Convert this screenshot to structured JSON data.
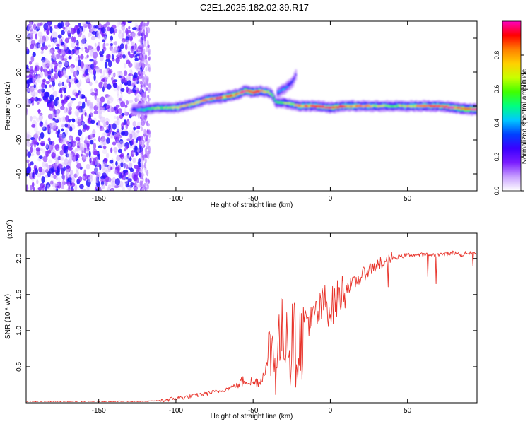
{
  "figure": {
    "title": "C2E1.2025.182.02.39.R17"
  },
  "colorbar": {
    "label": "Normalized spectral amplitude",
    "ticks": [
      "0.0",
      "0.2",
      "0.4",
      "0.6",
      "0.8"
    ],
    "range": [
      0,
      1
    ],
    "colormap": [
      "#ffffff",
      "#c8a0ff",
      "#7a1cff",
      "#3a00ff",
      "#0040ff",
      "#00c8ff",
      "#00ff80",
      "#40ff00",
      "#c8ff00",
      "#ffd000",
      "#ff8000",
      "#ff0000",
      "#ff00c0"
    ]
  },
  "chart_data": [
    {
      "type": "heatmap",
      "xlabel": "Height of straight line (km)",
      "ylabel": "Frequency (Hz)",
      "xlim": [
        -197,
        95
      ],
      "ylim": [
        -50,
        50
      ],
      "xticks": [
        -150,
        -100,
        -50,
        0,
        50
      ],
      "yticks": [
        -40,
        -20,
        0,
        20,
        40
      ],
      "xtick_labels": [
        "-150",
        "-100",
        "-50",
        "0",
        "50"
      ],
      "ytick_labels": [
        "-40",
        "-20",
        "0",
        "20",
        "40"
      ],
      "noise_region_x": [
        -197,
        -113
      ],
      "main_signal": {
        "x": [
          -128,
          -120,
          -112,
          -100,
          -90,
          -80,
          -70,
          -60,
          -55,
          -50,
          -45,
          -40,
          -38,
          -35,
          -30,
          -25,
          -20,
          -10,
          0,
          10,
          20,
          30,
          40,
          50,
          60,
          70,
          80,
          90,
          95
        ],
        "y": [
          -2,
          -2,
          -1,
          -1,
          1,
          4,
          5,
          7,
          9,
          8,
          9,
          8,
          7,
          2,
          2,
          1,
          0,
          0,
          -1,
          0,
          0,
          0,
          0,
          0,
          0,
          0,
          -1,
          -2,
          -2
        ],
        "peak_amplitude": [
          0.3,
          0.5,
          0.6,
          0.7,
          0.7,
          0.75,
          0.8,
          0.85,
          0.9,
          0.85,
          0.8,
          0.7,
          0.6,
          0.55,
          0.6,
          0.65,
          0.75,
          0.8,
          0.85,
          0.8,
          0.75,
          0.7,
          0.6,
          0.7,
          0.75,
          0.85,
          0.9,
          1.0,
          0.9
        ]
      },
      "branch_signal": {
        "x": [
          -34,
          -30,
          -27,
          -24,
          -22
        ],
        "y": [
          8,
          10,
          12,
          15,
          19
        ],
        "peak_amplitude": [
          0.4,
          0.4,
          0.35,
          0.3,
          0.2
        ]
      }
    },
    {
      "type": "line",
      "xlabel": "Height of straight line (km)",
      "ylabel": "SNR (10 * v/v)",
      "yscale_label": "(x10",
      "yscale_exponent": "4",
      "yscale_suffix": ")",
      "xlim": [
        -197,
        95
      ],
      "ylim": [
        0,
        2.35
      ],
      "xticks": [
        -150,
        -100,
        -50,
        0,
        50
      ],
      "yticks": [
        0.5,
        1.0,
        1.5,
        2.0
      ],
      "xtick_labels": [
        "-150",
        "-100",
        "-50",
        "0",
        "50"
      ],
      "ytick_labels": [
        "0.5",
        "1.0",
        "1.5",
        "2.0"
      ],
      "line_color": "#e8332a",
      "series": [
        {
          "x": [
            -197,
            -180,
            -160,
            -140,
            -120,
            -110,
            -100,
            -90,
            -80,
            -70,
            -60,
            -55,
            -50,
            -45,
            -40,
            -38,
            -36,
            -34,
            -32,
            -30,
            -28,
            -26,
            -24,
            -22,
            -20,
            -18,
            -16,
            -14,
            -12,
            -10,
            -8,
            -6,
            -4,
            -2,
            0,
            5,
            10,
            15,
            20,
            25,
            30,
            35,
            40,
            50,
            60,
            70,
            80,
            85,
            88,
            90,
            92,
            95
          ],
          "y": [
            0.02,
            0.02,
            0.02,
            0.02,
            0.02,
            0.03,
            0.06,
            0.09,
            0.13,
            0.17,
            0.25,
            0.32,
            0.28,
            0.3,
            0.6,
            0.85,
            0.55,
            0.8,
            0.95,
            0.9,
            1.15,
            0.65,
            1.0,
            0.7,
            0.9,
            0.85,
            1.1,
            1.2,
            1.05,
            1.25,
            1.2,
            1.3,
            1.4,
            1.35,
            1.3,
            1.45,
            1.6,
            1.65,
            1.75,
            1.85,
            1.9,
            1.95,
            2.0,
            2.05,
            2.05,
            2.05,
            2.08,
            2.05,
            2.08,
            2.06,
            2.1,
            2.05
          ]
        }
      ]
    }
  ]
}
